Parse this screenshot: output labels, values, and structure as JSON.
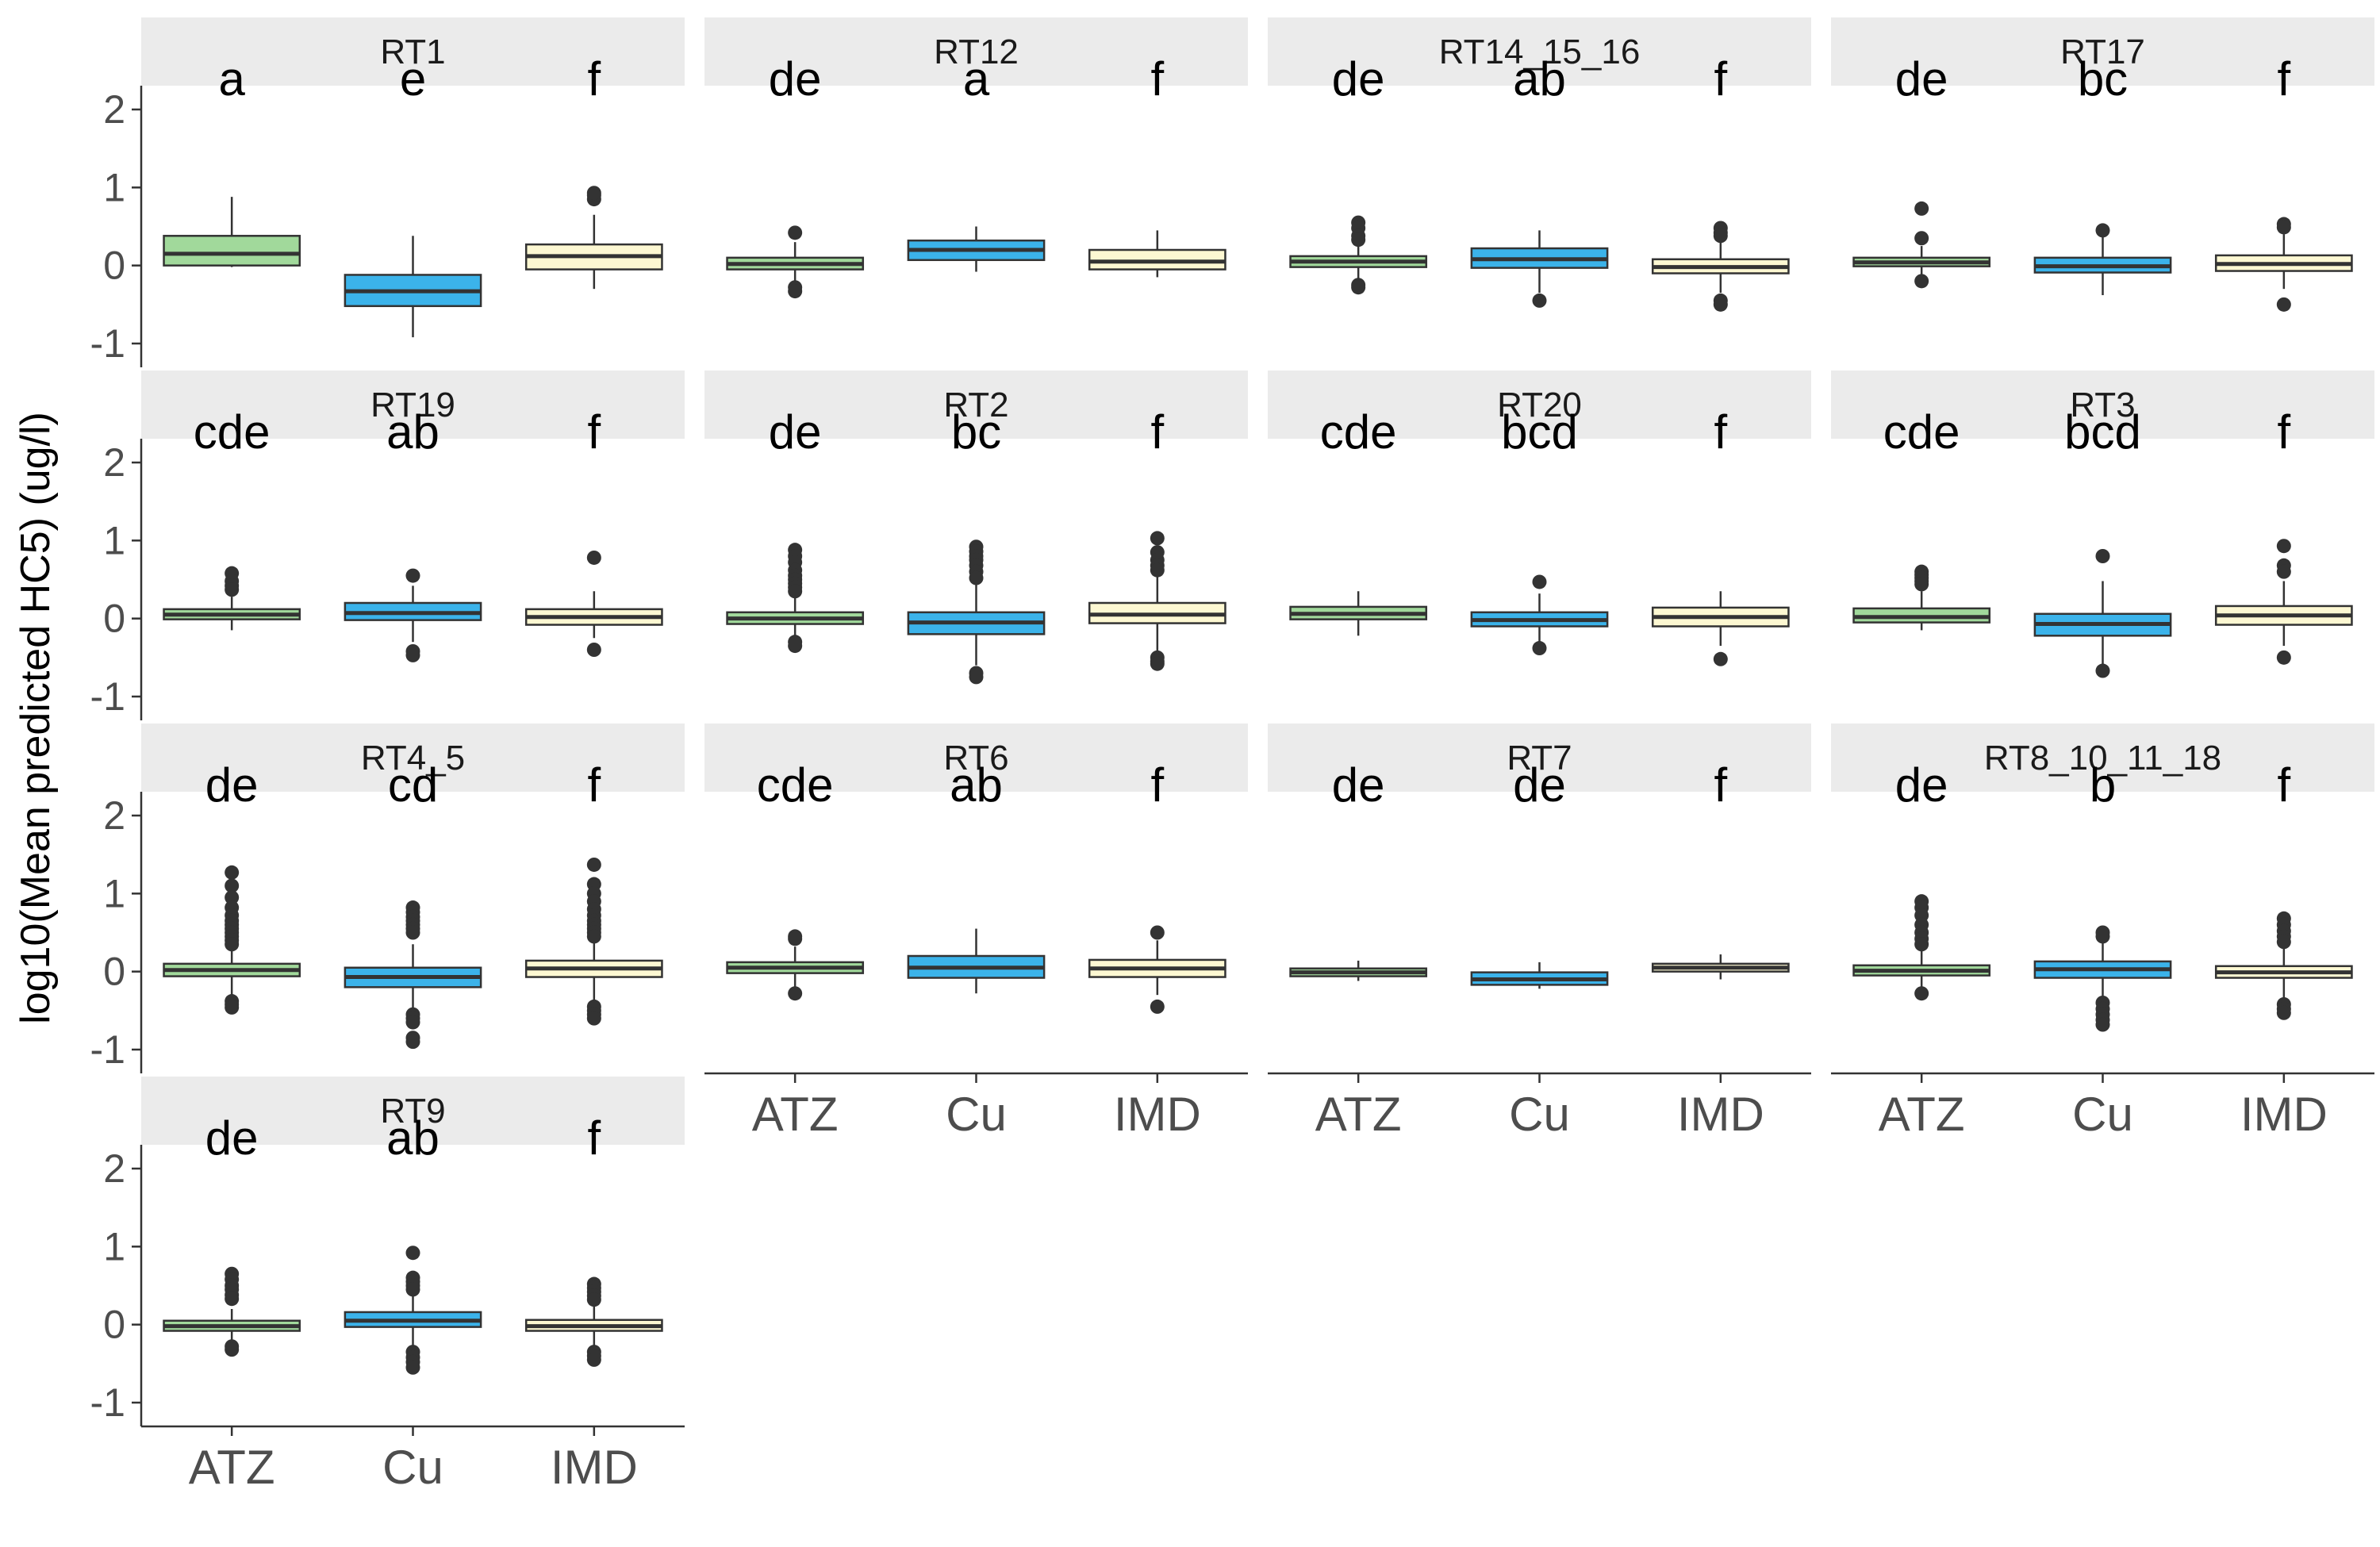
{
  "chart_data": {
    "type": "boxplot",
    "ylabel": "log10(Mean predicted HC5) (ug/l)",
    "ylim": [
      -1,
      2
    ],
    "yticks": [
      -1,
      0,
      1,
      2
    ],
    "categories": [
      "ATZ",
      "Cu",
      "IMD"
    ],
    "colors": {
      "ATZ": "#a1d99b",
      "Cu": "#3bb3ea",
      "IMD": "#fdf8d2"
    },
    "panels": [
      {
        "title": "RT1",
        "letters": [
          "a",
          "e",
          "f"
        ],
        "boxes": [
          {
            "lo": -0.02,
            "q1": 0.0,
            "med": 0.15,
            "q3": 0.38,
            "hi": 0.88,
            "out": []
          },
          {
            "lo": -0.92,
            "q1": -0.52,
            "med": -0.33,
            "q3": -0.12,
            "hi": 0.38,
            "out": []
          },
          {
            "lo": -0.3,
            "q1": -0.05,
            "med": 0.12,
            "q3": 0.27,
            "hi": 0.65,
            "out": [
              0.85,
              0.9,
              0.93
            ]
          }
        ]
      },
      {
        "title": "RT12",
        "letters": [
          "de",
          "a",
          "f"
        ],
        "boxes": [
          {
            "lo": -0.25,
            "q1": -0.05,
            "med": 0.02,
            "q3": 0.1,
            "hi": 0.3,
            "out": [
              0.42,
              -0.28,
              -0.33
            ]
          },
          {
            "lo": -0.08,
            "q1": 0.07,
            "med": 0.2,
            "q3": 0.32,
            "hi": 0.5,
            "out": []
          },
          {
            "lo": -0.15,
            "q1": -0.05,
            "med": 0.05,
            "q3": 0.2,
            "hi": 0.45,
            "out": []
          }
        ]
      },
      {
        "title": "RT14_15_16",
        "letters": [
          "de",
          "ab",
          "f"
        ],
        "boxes": [
          {
            "lo": -0.2,
            "q1": -0.02,
            "med": 0.05,
            "q3": 0.12,
            "hi": 0.3,
            "out": [
              0.55,
              0.48,
              0.38,
              0.33,
              -0.25,
              -0.28
            ]
          },
          {
            "lo": -0.35,
            "q1": -0.03,
            "med": 0.08,
            "q3": 0.22,
            "hi": 0.45,
            "out": [
              -0.45
            ]
          },
          {
            "lo": -0.35,
            "q1": -0.1,
            "med": -0.02,
            "q3": 0.08,
            "hi": 0.3,
            "out": [
              0.48,
              0.42,
              0.38,
              -0.45,
              -0.5
            ]
          }
        ]
      },
      {
        "title": "RT17",
        "letters": [
          "de",
          "bc",
          "f"
        ],
        "boxes": [
          {
            "lo": -0.15,
            "q1": -0.01,
            "med": 0.04,
            "q3": 0.1,
            "hi": 0.25,
            "out": [
              0.73,
              0.35,
              -0.2
            ]
          },
          {
            "lo": -0.38,
            "q1": -0.09,
            "med": -0.01,
            "q3": 0.1,
            "hi": 0.4,
            "out": [
              0.45
            ]
          },
          {
            "lo": -0.3,
            "q1": -0.07,
            "med": 0.02,
            "q3": 0.13,
            "hi": 0.4,
            "out": [
              0.53,
              0.49,
              -0.5
            ]
          }
        ]
      },
      {
        "title": "RT19",
        "letters": [
          "cde",
          "ab",
          "f"
        ],
        "boxes": [
          {
            "lo": -0.15,
            "q1": -0.01,
            "med": 0.05,
            "q3": 0.12,
            "hi": 0.28,
            "out": [
              0.58,
              0.48,
              0.42,
              0.37
            ]
          },
          {
            "lo": -0.3,
            "q1": -0.02,
            "med": 0.07,
            "q3": 0.2,
            "hi": 0.42,
            "out": [
              0.55,
              -0.42,
              -0.47
            ]
          },
          {
            "lo": -0.25,
            "q1": -0.08,
            "med": 0.02,
            "q3": 0.12,
            "hi": 0.35,
            "out": [
              0.78,
              -0.4
            ]
          }
        ]
      },
      {
        "title": "RT2",
        "letters": [
          "de",
          "bc",
          "f"
        ],
        "boxes": [
          {
            "lo": -0.25,
            "q1": -0.07,
            "med": 0.0,
            "q3": 0.08,
            "hi": 0.3,
            "out": [
              0.88,
              0.8,
              0.72,
              0.62,
              0.55,
              0.5,
              0.45,
              0.4,
              0.35,
              -0.3,
              -0.35
            ]
          },
          {
            "lo": -0.6,
            "q1": -0.2,
            "med": -0.05,
            "q3": 0.08,
            "hi": 0.45,
            "out": [
              0.92,
              0.86,
              0.8,
              0.75,
              0.68,
              0.6,
              0.52,
              -0.7,
              -0.75
            ]
          },
          {
            "lo": -0.45,
            "q1": -0.06,
            "med": 0.05,
            "q3": 0.2,
            "hi": 0.55,
            "out": [
              1.03,
              0.85,
              0.75,
              0.68,
              0.62,
              -0.5,
              -0.55,
              -0.58
            ]
          }
        ]
      },
      {
        "title": "RT20",
        "letters": [
          "cde",
          "bcd",
          "f"
        ],
        "boxes": [
          {
            "lo": -0.22,
            "q1": -0.01,
            "med": 0.06,
            "q3": 0.15,
            "hi": 0.35,
            "out": []
          },
          {
            "lo": -0.35,
            "q1": -0.1,
            "med": -0.02,
            "q3": 0.08,
            "hi": 0.32,
            "out": [
              0.47,
              -0.38
            ]
          },
          {
            "lo": -0.35,
            "q1": -0.1,
            "med": 0.02,
            "q3": 0.14,
            "hi": 0.35,
            "out": [
              -0.52
            ]
          }
        ]
      },
      {
        "title": "RT3",
        "letters": [
          "cde",
          "bcd",
          "f"
        ],
        "boxes": [
          {
            "lo": -0.15,
            "q1": -0.05,
            "med": 0.02,
            "q3": 0.13,
            "hi": 0.35,
            "out": [
              0.6,
              0.56,
              0.52,
              0.48,
              0.44
            ]
          },
          {
            "lo": -0.6,
            "q1": -0.22,
            "med": -0.07,
            "q3": 0.06,
            "hi": 0.48,
            "out": [
              0.8,
              -0.67
            ]
          },
          {
            "lo": -0.35,
            "q1": -0.08,
            "med": 0.04,
            "q3": 0.16,
            "hi": 0.48,
            "out": [
              0.93,
              0.68,
              0.6,
              -0.5
            ]
          }
        ]
      },
      {
        "title": "RT4_5",
        "letters": [
          "de",
          "cd",
          "f"
        ],
        "boxes": [
          {
            "lo": -0.35,
            "q1": -0.06,
            "med": 0.02,
            "q3": 0.1,
            "hi": 0.3,
            "out": [
              1.27,
              1.1,
              0.95,
              0.82,
              0.72,
              0.65,
              0.6,
              0.55,
              0.5,
              0.45,
              0.4,
              0.35,
              -0.38,
              -0.42,
              -0.46
            ]
          },
          {
            "lo": -0.5,
            "q1": -0.2,
            "med": -0.07,
            "q3": 0.05,
            "hi": 0.35,
            "out": [
              0.82,
              0.76,
              0.7,
              0.65,
              0.6,
              0.55,
              0.5,
              -0.55,
              -0.6,
              -0.65,
              -0.85,
              -0.9
            ]
          },
          {
            "lo": -0.4,
            "q1": -0.07,
            "med": 0.04,
            "q3": 0.14,
            "hi": 0.38,
            "out": [
              1.37,
              1.12,
              1.0,
              0.9,
              0.8,
              0.72,
              0.65,
              0.6,
              0.55,
              0.5,
              0.45,
              -0.45,
              -0.5,
              -0.55,
              -0.6
            ]
          }
        ]
      },
      {
        "title": "RT6",
        "letters": [
          "cde",
          "ab",
          "f"
        ],
        "boxes": [
          {
            "lo": -0.2,
            "q1": -0.02,
            "med": 0.05,
            "q3": 0.12,
            "hi": 0.32,
            "out": [
              0.45,
              0.42,
              -0.28
            ]
          },
          {
            "lo": -0.28,
            "q1": -0.08,
            "med": 0.05,
            "q3": 0.2,
            "hi": 0.55,
            "out": []
          },
          {
            "lo": -0.3,
            "q1": -0.07,
            "med": 0.04,
            "q3": 0.15,
            "hi": 0.4,
            "out": [
              0.5,
              -0.45
            ]
          }
        ]
      },
      {
        "title": "RT7",
        "letters": [
          "de",
          "de",
          "f"
        ],
        "boxes": [
          {
            "lo": -0.12,
            "q1": -0.06,
            "med": -0.01,
            "q3": 0.04,
            "hi": 0.14,
            "out": []
          },
          {
            "lo": -0.22,
            "q1": -0.17,
            "med": -0.1,
            "q3": -0.01,
            "hi": 0.12,
            "out": []
          },
          {
            "lo": -0.1,
            "q1": 0.0,
            "med": 0.05,
            "q3": 0.1,
            "hi": 0.22,
            "out": []
          }
        ]
      },
      {
        "title": "RT8_10_11_18",
        "letters": [
          "de",
          "b",
          "f"
        ],
        "boxes": [
          {
            "lo": -0.2,
            "q1": -0.05,
            "med": 0.01,
            "q3": 0.08,
            "hi": 0.3,
            "out": [
              0.9,
              0.82,
              0.72,
              0.6,
              0.5,
              0.42,
              0.35,
              -0.28
            ]
          },
          {
            "lo": -0.35,
            "q1": -0.08,
            "med": 0.03,
            "q3": 0.13,
            "hi": 0.42,
            "out": [
              0.5,
              0.45,
              -0.4,
              -0.48,
              -0.55,
              -0.62,
              -0.68
            ]
          },
          {
            "lo": -0.35,
            "q1": -0.08,
            "med": -0.01,
            "q3": 0.07,
            "hi": 0.3,
            "out": [
              0.68,
              0.6,
              0.52,
              0.45,
              0.38,
              -0.42,
              -0.48,
              -0.53
            ]
          }
        ]
      },
      {
        "title": "RT9",
        "letters": [
          "de",
          "ab",
          "f"
        ],
        "boxes": [
          {
            "lo": -0.2,
            "q1": -0.08,
            "med": -0.02,
            "q3": 0.05,
            "hi": 0.2,
            "out": [
              0.65,
              0.58,
              0.5,
              0.45,
              0.38,
              0.33,
              -0.28,
              -0.32
            ]
          },
          {
            "lo": -0.3,
            "q1": -0.03,
            "med": 0.05,
            "q3": 0.16,
            "hi": 0.4,
            "out": [
              0.92,
              0.6,
              0.55,
              0.5,
              0.45,
              -0.35,
              -0.42,
              -0.48,
              -0.55
            ]
          },
          {
            "lo": -0.28,
            "q1": -0.08,
            "med": -0.02,
            "q3": 0.06,
            "hi": 0.25,
            "out": [
              0.52,
              0.47,
              0.42,
              0.37,
              0.32,
              -0.35,
              -0.4,
              -0.45
            ]
          }
        ]
      }
    ]
  }
}
